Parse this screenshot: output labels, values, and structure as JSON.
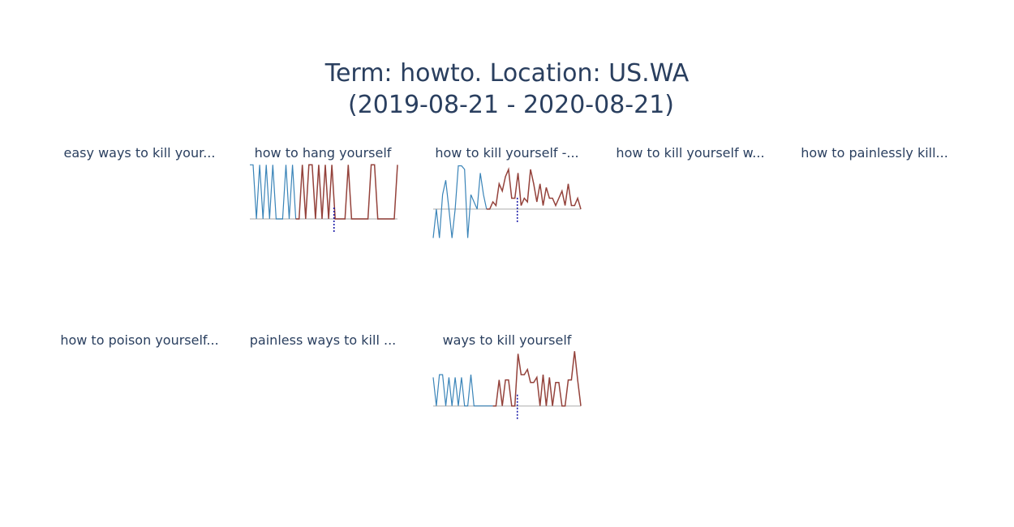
{
  "figure": {
    "title_line1": "Term: howto. Location: US.WA",
    "title_line2": "(2019-08-21 - 2020-08-21)"
  },
  "colors": {
    "pre": "#3a84b8",
    "post": "#94423b",
    "baseline": "#c7c7c7",
    "marker": "#1a1aa8"
  },
  "chart_data": [
    {
      "type": "line",
      "title": "easy ways to kill your...",
      "pre": [],
      "post": []
    },
    {
      "type": "line",
      "title": "how to hang yourself",
      "pre": [
        1,
        1,
        0,
        1,
        0,
        1,
        0,
        1,
        0,
        0,
        0,
        1,
        0,
        1,
        0
      ],
      "post": [
        0,
        1,
        0,
        1,
        1,
        0,
        1,
        0,
        1,
        0,
        1,
        0,
        0,
        0,
        0,
        1,
        0,
        0,
        0,
        0,
        0,
        0,
        1,
        1,
        0,
        0,
        0,
        0,
        0,
        0,
        1
      ],
      "ylim": [
        -0.3,
        1.05
      ]
    },
    {
      "type": "line",
      "title": "how to kill yourself -...",
      "pre": [
        -0.4,
        0,
        -0.4,
        0.2,
        0.4,
        0,
        -0.4,
        0,
        0.6,
        0.6,
        0.55,
        -0.4,
        0.2,
        0.1,
        0,
        0.5,
        0.2,
        0
      ],
      "post": [
        0,
        0.1,
        0.05,
        0.35,
        0.25,
        0.45,
        0.55,
        0.15,
        0.15,
        0.5,
        0.05,
        0.15,
        0.1,
        0.55,
        0.35,
        0.1,
        0.35,
        0.05,
        0.3,
        0.15,
        0.15,
        0.05,
        0.15,
        0.25,
        0.05,
        0.35,
        0.05,
        0.05,
        0.15,
        0
      ],
      "ylim": [
        -0.45,
        0.65
      ]
    },
    {
      "type": "line",
      "title": "how to kill yourself w...",
      "pre": [],
      "post": []
    },
    {
      "type": "line",
      "title": "how to painlessly kill...",
      "pre": [],
      "post": []
    },
    {
      "type": "line",
      "title": "how to poison yourself...",
      "pre": [],
      "post": []
    },
    {
      "type": "line",
      "title": "painless ways to kill ...",
      "pre": [],
      "post": []
    },
    {
      "type": "line",
      "title": "ways to kill yourself",
      "pre": [
        0.55,
        0,
        0.6,
        0.6,
        0,
        0.55,
        0,
        0.55,
        0,
        0.55,
        0,
        0,
        0.6,
        0,
        0,
        0,
        0,
        0,
        0,
        0
      ],
      "post": [
        0,
        0.5,
        0,
        0.5,
        0.5,
        0,
        0,
        1,
        0.6,
        0.6,
        0.7,
        0.45,
        0.45,
        0.55,
        0,
        0.6,
        0,
        0.55,
        0,
        0.45,
        0.45,
        0,
        0,
        0.5,
        0.5,
        1.05,
        0.5,
        0
      ],
      "ylim": [
        -0.3,
        1.1
      ]
    }
  ]
}
